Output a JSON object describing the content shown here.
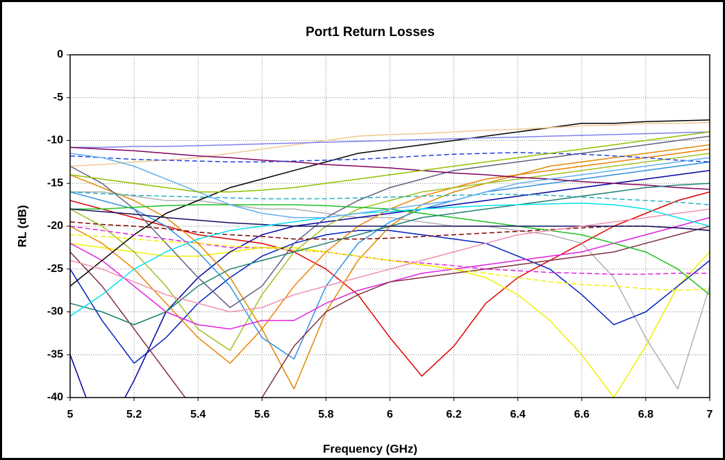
{
  "chart_data": {
    "type": "line",
    "title": "Port1 Return Losses",
    "x_label": "Frequency (GHz)",
    "y_label": "RL (dB)",
    "x": [
      5,
      5.1,
      5.2,
      5.3,
      5.4,
      5.5,
      5.6,
      5.7,
      5.8,
      5.9,
      6,
      6.1,
      6.2,
      6.3,
      6.4,
      6.5,
      6.6,
      6.7,
      6.8,
      6.9,
      7
    ],
    "xlim": [
      5,
      7
    ],
    "xticks": [
      5,
      5.2,
      5.4,
      5.6,
      5.8,
      6,
      6.2,
      6.4,
      6.6,
      6.8,
      7
    ],
    "ylim": [
      -40,
      0
    ],
    "yticks": [
      0,
      -5,
      -10,
      -15,
      -20,
      -25,
      -30,
      -35,
      -40
    ],
    "grid": true,
    "series": [
      {
        "color": "#e00000",
        "values": [
          -17,
          -18,
          -19,
          -20,
          -21,
          -21.5,
          -22,
          -23,
          -25,
          -28,
          -33,
          -37.5,
          -34,
          -29,
          -26,
          -24,
          -22,
          -20,
          -18.5,
          -17,
          -16
        ]
      },
      {
        "color": "#f0f000",
        "values": [
          -22,
          -22.5,
          -23,
          -23.5,
          -23.5,
          -23,
          -22.5,
          -22.5,
          -23,
          -23.5,
          -24,
          -24.5,
          -25,
          -26,
          -28,
          -31,
          -35,
          -40,
          -34,
          -27,
          -23
        ]
      },
      {
        "color": "#b0b0b0",
        "values": [
          -16,
          -16,
          -16.5,
          -17,
          -17,
          -17.5,
          -18,
          -18,
          -18.5,
          -19,
          -19,
          -19.5,
          -20,
          -20,
          -20.5,
          -21,
          -22,
          -26,
          -33,
          -39,
          -27
        ]
      },
      {
        "color": "#0020c0",
        "values": [
          -25,
          -31,
          -36,
          -33,
          -29,
          -26,
          -23.5,
          -22,
          -21,
          -20.5,
          -20.5,
          -21,
          -21.5,
          -22,
          -23.5,
          -25,
          -28,
          -31.5,
          -30,
          -27,
          -24
        ]
      },
      {
        "color": "#0000a0",
        "values": [
          -35,
          -45,
          -38,
          -30,
          -26,
          -23,
          -21,
          -20,
          -19.5,
          -19,
          -18.5,
          -18,
          -17.5,
          -17,
          -16.5,
          -16,
          -15.5,
          -15,
          -14.5,
          -14,
          -13.5
        ]
      },
      {
        "color": "#f08000",
        "values": [
          -20,
          -22,
          -25,
          -29,
          -33,
          -36,
          -32,
          -27,
          -23,
          -20,
          -18,
          -16.5,
          -15.5,
          -14.5,
          -14,
          -13.5,
          -13,
          -12.5,
          -12,
          -11.5,
          -11
        ]
      },
      {
        "color": "#e08800",
        "values": [
          -14,
          -15.5,
          -17,
          -19,
          -22,
          -26,
          -32,
          -39,
          -30,
          -24,
          -20,
          -17.5,
          -16,
          -15,
          -14,
          -13,
          -12.5,
          -12,
          -11.5,
          -11,
          -10.5
        ]
      },
      {
        "color": "#a0c020",
        "values": [
          -18,
          -20,
          -23,
          -27,
          -32,
          -34.5,
          -28,
          -23,
          -20,
          -18,
          -17,
          -16,
          -15.5,
          -15,
          -14.5,
          -14,
          -13.5,
          -13,
          -12.5,
          -12,
          -11.5
        ]
      },
      {
        "color": "#606080",
        "values": [
          -13,
          -15,
          -18,
          -22,
          -26,
          -29.5,
          -27,
          -22,
          -19,
          -17,
          -15.5,
          -14.5,
          -13.5,
          -13,
          -12.5,
          -12,
          -11.5,
          -11,
          -10.5,
          -10,
          -9.5
        ]
      },
      {
        "color": "#3090e0",
        "values": [
          -16,
          -17,
          -18,
          -20,
          -23,
          -27,
          -33,
          -35.5,
          -27,
          -22,
          -19.5,
          -18,
          -17,
          -16,
          -15.5,
          -15,
          -14.5,
          -14,
          -13.5,
          -13,
          -12.5
        ]
      },
      {
        "color": "#e020e0",
        "values": [
          -22,
          -24,
          -27,
          -30,
          -31.5,
          -32,
          -31,
          -31,
          -29,
          -27.5,
          -26.5,
          -25.5,
          -25,
          -24.5,
          -24,
          -23.5,
          -23,
          -22,
          -21,
          -20,
          -19
        ]
      },
      {
        "color": "#803040",
        "values": [
          -23,
          -27,
          -32,
          -37,
          -42,
          -45,
          -40,
          -34,
          -30,
          -28,
          -26.5,
          -26,
          -25.5,
          -25,
          -24.5,
          -24,
          -23.5,
          -23,
          -22,
          -21,
          -20
        ]
      },
      {
        "color": "#000000",
        "values": [
          -27,
          -24,
          -21,
          -18.5,
          -17,
          -15.5,
          -14.5,
          -13.5,
          -12.5,
          -11.5,
          -11,
          -10.5,
          -10,
          -9.5,
          -9,
          -8.5,
          -8,
          -8,
          -7.8,
          -7.7,
          -7.6
        ]
      },
      {
        "color": "#f0c890",
        "values": [
          -13,
          -12.8,
          -12.5,
          -12.3,
          -12,
          -11.5,
          -11,
          -10.5,
          -10,
          -9.5,
          -9.3,
          -9.2,
          -9,
          -8.8,
          -8.7,
          -8.5,
          -8.3,
          -8.2,
          -8,
          -8,
          -7.9
        ]
      },
      {
        "color": "#8080f0",
        "values": [
          -10.8,
          -10.8,
          -10.7,
          -10.7,
          -10.6,
          -10.5,
          -10.4,
          -10.3,
          -10.2,
          -10.1,
          -10,
          -9.9,
          -9.8,
          -9.7,
          -9.6,
          -9.5,
          -9.4,
          -9.3,
          -9.2,
          -9.1,
          -9
        ]
      },
      {
        "color": "#800060",
        "values": [
          -10.8,
          -11,
          -11.2,
          -11.5,
          -11.8,
          -12,
          -12.3,
          -12.5,
          -12.8,
          -13,
          -13.2,
          -13.5,
          -13.8,
          -14,
          -14.3,
          -14.5,
          -14.8,
          -15,
          -15.2,
          -15.5,
          -15.7
        ]
      },
      {
        "color": "#2040e0",
        "dashed": true,
        "values": [
          -11.8,
          -12,
          -12.2,
          -12.3,
          -12.4,
          -12.5,
          -12.5,
          -12.4,
          -12.3,
          -12.2,
          -12,
          -11.8,
          -11.6,
          -11.5,
          -11.4,
          -11.5,
          -11.6,
          -11.8,
          -12,
          -12.3,
          -12.5
        ]
      },
      {
        "color": "#e020e0",
        "dashed": true,
        "values": [
          -20,
          -20.5,
          -21,
          -21.5,
          -22,
          -22.5,
          -22.5,
          -22.8,
          -23,
          -23.5,
          -24,
          -24.3,
          -24.6,
          -25,
          -25.2,
          -25.4,
          -25.5,
          -25.6,
          -25.6,
          -25.5,
          -25.5
        ]
      },
      {
        "color": "#f0f000",
        "dashed": true,
        "values": [
          -21,
          -21.2,
          -21.5,
          -21.8,
          -22,
          -22.3,
          -22.5,
          -22.8,
          -23,
          -23.5,
          -24,
          -24.5,
          -25,
          -25.5,
          -26,
          -26.5,
          -26.8,
          -27,
          -27.3,
          -27.5,
          -27.3
        ]
      },
      {
        "color": "#800000",
        "dashed": true,
        "values": [
          -19.5,
          -19.8,
          -20,
          -20.3,
          -20.7,
          -21,
          -21.2,
          -21.5,
          -21.5,
          -21.5,
          -21.4,
          -21.2,
          -21,
          -20.8,
          -20.6,
          -20.4,
          -20.2,
          -20,
          -20,
          -20.2,
          -20.5
        ]
      },
      {
        "color": "#20b0c0",
        "dashed": true,
        "values": [
          -16,
          -16.2,
          -16.4,
          -16.5,
          -16.6,
          -16.7,
          -16.8,
          -16.8,
          -16.8,
          -16.7,
          -16.6,
          -16.5,
          -16.4,
          -16.3,
          -16.3,
          -16.4,
          -16.6,
          -16.8,
          -17,
          -17.2,
          -17.5
        ]
      },
      {
        "color": "#20c020",
        "values": [
          -18,
          -18,
          -17.8,
          -17.6,
          -17.5,
          -17.5,
          -17.5,
          -17.5,
          -17.6,
          -17.8,
          -18,
          -18.5,
          -19,
          -19.5,
          -20,
          -20.5,
          -21,
          -22,
          -23,
          -25,
          -28
        ]
      },
      {
        "color": "#208070",
        "values": [
          -29,
          -30,
          -31.5,
          -30,
          -27,
          -25,
          -24,
          -23,
          -22,
          -21,
          -20,
          -19,
          -18.5,
          -18,
          -17.5,
          -17,
          -16.5,
          -16,
          -15.5,
          -15.2,
          -15
        ]
      },
      {
        "color": "#101060",
        "values": [
          -18,
          -18.3,
          -18.6,
          -19,
          -19.3,
          -19.6,
          -19.8,
          -20,
          -20,
          -20,
          -20,
          -20,
          -20,
          -20,
          -20,
          -20,
          -20,
          -20,
          -20,
          -20.2,
          -20.5
        ]
      },
      {
        "color": "#f090b0",
        "values": [
          -24,
          -25,
          -26.5,
          -28,
          -29,
          -30,
          -29.5,
          -28,
          -27,
          -26,
          -25,
          -24,
          -23,
          -22,
          -21,
          -20.5,
          -20,
          -19.5,
          -19,
          -18.5,
          -18
        ]
      },
      {
        "color": "#00e0f0",
        "values": [
          -30.5,
          -28,
          -25,
          -23,
          -21.5,
          -20.5,
          -20,
          -19.5,
          -19,
          -18.5,
          -18.3,
          -18,
          -17.8,
          -17.6,
          -17.5,
          -17.4,
          -17.3,
          -17.5,
          -18,
          -19,
          -20
        ]
      },
      {
        "color": "#60b0f0",
        "values": [
          -11.5,
          -12,
          -13,
          -14.5,
          -16,
          -17.5,
          -18.5,
          -19,
          -19,
          -18.5,
          -18,
          -17.5,
          -17,
          -16,
          -15,
          -14.5,
          -14,
          -13.5,
          -13,
          -12.5,
          -12
        ]
      },
      {
        "color": "#90c000",
        "values": [
          -14,
          -14.5,
          -15,
          -15.5,
          -16,
          -16,
          -15.8,
          -15.5,
          -15,
          -14.5,
          -14,
          -13.5,
          -13,
          -12.5,
          -12,
          -11.5,
          -11,
          -10.5,
          -10,
          -9.5,
          -9
        ]
      }
    ]
  }
}
